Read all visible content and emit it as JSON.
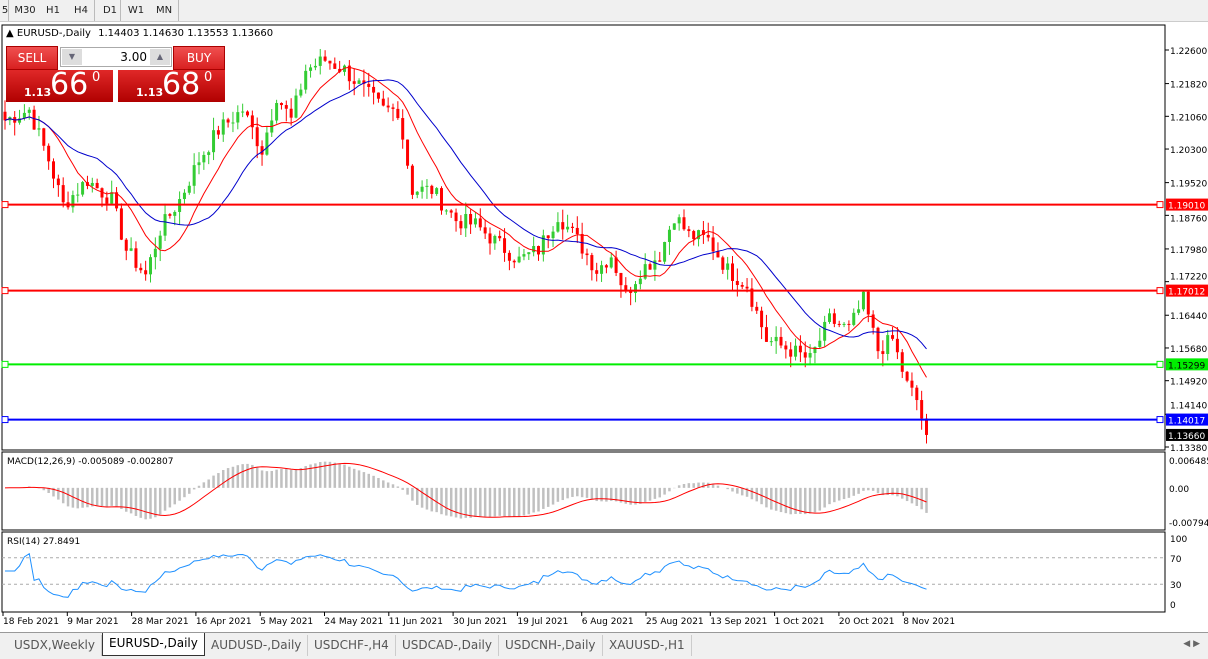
{
  "timeframes": [
    "5",
    "M30",
    "H1",
    "H4",
    "D1",
    "W1",
    "MN"
  ],
  "active_timeframe": "D1",
  "chart": {
    "symbol_title": "EURUSD-,Daily",
    "ohlc": "1.14403 1.14630 1.13553 1.13660",
    "bull_color": "#33cc33",
    "bear_color": "#ff0000",
    "ma_fast_color": "#ff0000",
    "ma_slow_color": "#0000cc",
    "price_axis": [
      "1.22600",
      "1.21820",
      "1.21060",
      "1.20300",
      "1.19520",
      "1.18760",
      "1.17980",
      "1.17220",
      "1.16440",
      "1.15680",
      "1.14920",
      "1.14140",
      "1.13380"
    ],
    "current_price": "1.13660",
    "levels": [
      {
        "price": "1.19010",
        "color": "#ff0000"
      },
      {
        "price": "1.17012",
        "color": "#ff0000"
      },
      {
        "price": "1.15299",
        "color": "#00ee00"
      },
      {
        "price": "1.14017",
        "color": "#0000ff"
      }
    ],
    "close_waypoints": [
      [
        0,
        1.2097
      ],
      [
        5,
        1.2121
      ],
      [
        9,
        1.2005
      ],
      [
        12,
        1.19
      ],
      [
        17,
        1.1958
      ],
      [
        22,
        1.1912
      ],
      [
        25,
        1.1796
      ],
      [
        29,
        1.1737
      ],
      [
        32,
        1.1842
      ],
      [
        36,
        1.1912
      ],
      [
        40,
        1.2005
      ],
      [
        44,
        1.2074
      ],
      [
        49,
        1.2121
      ],
      [
        53,
        1.2028
      ],
      [
        56,
        1.2155
      ],
      [
        59,
        1.2097
      ],
      [
        62,
        1.2214
      ],
      [
        66,
        1.2237
      ],
      [
        70,
        1.2214
      ],
      [
        74,
        1.2167
      ],
      [
        78,
        1.2121
      ],
      [
        81,
        1.2121
      ],
      [
        84,
        1.1935
      ],
      [
        88,
        1.1935
      ],
      [
        93,
        1.1865
      ],
      [
        97,
        1.1854
      ],
      [
        102,
        1.1807
      ],
      [
        106,
        1.1772
      ],
      [
        110,
        1.1796
      ],
      [
        114,
        1.1877
      ],
      [
        118,
        1.1819
      ],
      [
        122,
        1.1749
      ],
      [
        125,
        1.1784
      ],
      [
        128,
        1.1691
      ],
      [
        131,
        1.1749
      ],
      [
        135,
        1.1784
      ],
      [
        138,
        1.1877
      ],
      [
        141,
        1.183
      ],
      [
        145,
        1.1819
      ],
      [
        149,
        1.1749
      ],
      [
        153,
        1.1714
      ],
      [
        157,
        1.1587
      ],
      [
        162,
        1.1563
      ],
      [
        166,
        1.154
      ],
      [
        170,
        1.1633
      ],
      [
        174,
        1.161
      ],
      [
        177,
        1.1679
      ],
      [
        180,
        1.1563
      ],
      [
        183,
        1.1587
      ],
      [
        186,
        1.1482
      ],
      [
        188,
        1.1447
      ],
      [
        190,
        1.1366
      ]
    ],
    "dates": [
      "18 Feb 2021",
      "9 Mar 2021",
      "28 Mar 2021",
      "16 Apr 2021",
      "5 May 2021",
      "24 May 2021",
      "11 Jun 2021",
      "30 Jun 2021",
      "19 Jul 2021",
      "6 Aug 2021",
      "25 Aug 2021",
      "13 Sep 2021",
      "1 Oct 2021",
      "20 Oct 2021",
      "8 Nov 2021"
    ]
  },
  "trade_panel": {
    "sell_label": "SELL",
    "buy_label": "BUY",
    "lot": "3.00",
    "sell_prefix": "1.13",
    "sell_big": "66",
    "sell_sup": "0",
    "buy_prefix": "1.13",
    "buy_big": "68",
    "buy_sup": "0"
  },
  "macd": {
    "label": "MACD(12,26,9) -0.005089 -0.002807",
    "axis": [
      "0.006485",
      "0.00",
      "-0.007947"
    ]
  },
  "rsi": {
    "label": "RSI(14) 27.8491",
    "axis": [
      "100",
      "70",
      "30",
      "0"
    ]
  },
  "tabs": [
    "USDX,Weekly",
    "EURUSD-,Daily",
    "AUDUSD-,Daily",
    "USDCHF-,H4",
    "USDCAD-,Daily",
    "USDCNH-,Daily",
    "XAUUSD-,H1"
  ],
  "active_tab": "EURUSD-,Daily"
}
